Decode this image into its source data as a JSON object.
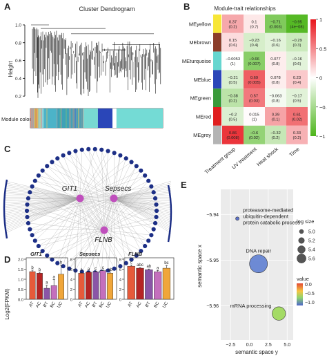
{
  "panels": {
    "A": "A",
    "B": "B",
    "C": "C",
    "D": "D",
    "E": "E"
  },
  "colors": {
    "dend_line": "#000000",
    "bar_turquoise": "#6fd6d0",
    "bar_blue": "#2a46b8",
    "heat_pos": "#e8141b",
    "heat_neg": "#4cb51a",
    "network_node": "#1d2f86",
    "hub_node": "#c04fbd",
    "bar_colors": [
      "#e65a3a",
      "#b52424",
      "#8a55a6",
      "#c46fbd",
      "#f0a63a"
    ],
    "bubble_dna": "#5f7fd2",
    "bubble_mrna": "#9cd957",
    "bubble_legend": "#4e66ca"
  },
  "chart_data": [
    {
      "type": "dendrogram",
      "panel": "A",
      "title": "Cluster Dendrogram",
      "ylabel": "Height",
      "yticks": [
        0.2,
        0.4,
        0.6,
        0.8,
        1.0
      ],
      "ylim": [
        0.1,
        1.0
      ],
      "colorbar_label": "Module colors",
      "module_colors": [
        {
          "color": "#a6a6a6",
          "fraction": 0.03
        },
        {
          "color": "#d4a34a",
          "fraction": 0.03
        },
        {
          "color": "#8fd1d7",
          "fraction": 0.04
        },
        {
          "color": "#4cb3c8",
          "fraction": 0.1
        },
        {
          "color": "#3da1b7",
          "fraction": 0.2
        },
        {
          "color": "#78d9d2",
          "fraction": 0.11
        },
        {
          "color": "#2a46b8",
          "fraction": 0.11
        },
        {
          "color": "#ffffff",
          "fraction": 0.03
        },
        {
          "color": "#74dbd5",
          "fraction": 0.35
        }
      ]
    },
    {
      "type": "heatmap",
      "panel": "B",
      "title": "Module-trait relationships",
      "rows": [
        "MEyellow",
        "MEbrown",
        "MEturquoise",
        "MEblue",
        "MEgreen",
        "MEred",
        "MEgrey"
      ],
      "row_colors": [
        "#f7e637",
        "#8b3d2a",
        "#66d6cf",
        "#2a46b8",
        "#3a9a3a",
        "#e01f1f",
        "#b4b4b4"
      ],
      "columns": [
        "Treatment group",
        "UV treatment",
        "Heat shock",
        "Time"
      ],
      "values": [
        [
          0.37,
          0.1,
          -0.71,
          -0.95
        ],
        [
          0.15,
          -0.23,
          -0.16,
          -0.29
        ],
        [
          -0.0053,
          -0.66,
          0.077,
          -0.16
        ],
        [
          -0.21,
          0.69,
          0.078,
          0.23
        ],
        [
          -0.38,
          0.57,
          -0.063,
          -0.17
        ],
        [
          -0.2,
          0.015,
          0.39,
          0.61
        ],
        [
          0.86,
          -0.6,
          -0.32,
          0.33
        ]
      ],
      "cell_text": [
        [
          [
            "0.37",
            "(0.2)"
          ],
          [
            "0.1",
            "(0.7)"
          ],
          [
            "−0.71",
            "(0.003)"
          ],
          [
            "−0.95",
            "(4e−08)"
          ]
        ],
        [
          [
            "0.15",
            "(0.6)"
          ],
          [
            "−0.23",
            "(0.4)"
          ],
          [
            "−0.16",
            "(0.6)"
          ],
          [
            "−0.29",
            "(0.3)"
          ]
        ],
        [
          [
            "−0.0053",
            "(1)"
          ],
          [
            "−0.66",
            "(0.007)"
          ],
          [
            "0.077",
            "(0.8)"
          ],
          [
            "−0.16",
            "(0.6)"
          ]
        ],
        [
          [
            "−0.21",
            "(0.5)"
          ],
          [
            "0.69",
            "(0.005)"
          ],
          [
            "0.078",
            "(0.8)"
          ],
          [
            "0.23",
            "(0.4)"
          ]
        ],
        [
          [
            "−0.38",
            "(0.2)"
          ],
          [
            "0.57",
            "(0.03)"
          ],
          [
            "−0.063",
            "(0.8)"
          ],
          [
            "−0.17",
            "(0.5)"
          ]
        ],
        [
          [
            "−0.2",
            "(0.5)"
          ],
          [
            "0.015",
            "(1)"
          ],
          [
            "0.39",
            "(0.1)"
          ],
          [
            "0.61",
            "(0.02)"
          ]
        ],
        [
          [
            "0.86",
            "(0.008)"
          ],
          [
            "−0.6",
            "(0.02)"
          ],
          [
            "−0.32",
            "(0.2)"
          ],
          [
            "0.33",
            "(0.2)"
          ]
        ]
      ],
      "colorbar_ticks": [
        "1",
        "0.5",
        "0",
        "−0.5",
        "−1"
      ],
      "colorbar_range": [
        -1,
        1
      ]
    },
    {
      "type": "network",
      "panel": "C",
      "hubs": [
        "GIT1",
        "Sepsecs",
        "FLNB"
      ],
      "peripheral_node_count": 62
    },
    {
      "type": "bar",
      "panel": "D",
      "ylabel": "Log2(FPKM)",
      "categories": [
        "AT",
        "AC",
        "BT",
        "BC",
        "UC"
      ],
      "subplots": [
        {
          "title": "GIT1",
          "ylim": [
            0,
            2
          ],
          "yticks": [
            0.0,
            0.5,
            1.0,
            1.5,
            2.0
          ],
          "values": [
            1.38,
            1.3,
            0.55,
            0.68,
            1.25
          ],
          "errors": [
            0.07,
            0.05,
            0.15,
            0.3,
            0.45
          ],
          "letters": [
            "b",
            "b",
            "a",
            "a",
            "b"
          ]
        },
        {
          "title": "Sepsecs",
          "ylim": [
            0,
            8
          ],
          "yticks": [
            0,
            2,
            4,
            6,
            8
          ],
          "values": [
            5.2,
            5.4,
            5.5,
            5.7,
            5.2
          ],
          "errors": [
            0.15,
            0.12,
            0.1,
            0.12,
            0.2
          ],
          "letters": [
            "a",
            "a",
            "c",
            "c",
            "ab"
          ]
        },
        {
          "title": "FLNB",
          "ylim": [
            0,
            8
          ],
          "yticks": [
            0,
            2,
            4,
            6,
            8
          ],
          "values": [
            6.6,
            6.2,
            5.9,
            5.5,
            6.2
          ],
          "errors": [
            0.25,
            0.12,
            0.15,
            0.25,
            0.55
          ],
          "letters": [
            "c",
            "abc",
            "ab",
            "a",
            "bc"
          ]
        }
      ]
    },
    {
      "type": "scatter",
      "panel": "E",
      "xlabel": "semantic space y",
      "ylabel": "semantic space x",
      "xticks": [
        -2.5,
        0.0,
        2.5,
        5.0
      ],
      "xtick_labels": [
        "−2.5",
        "0.0",
        "2.5",
        "5.0"
      ],
      "yticks": [
        -5.94,
        -5.95,
        -5.96
      ],
      "ytick_labels": [
        "−5.94",
        "−5.95",
        "−5.96"
      ],
      "xlim": [
        -3.8,
        5.8
      ],
      "ylim": [
        -5.9675,
        -5.9345
      ],
      "points": [
        {
          "label": "proteasome-mediated ubiquitin-dependent protein catabolic process",
          "label_lines": [
            "proteasome-mediated",
            "ubiquitin-dependent",
            "protein catabolic process"
          ],
          "x": -1.6,
          "y": -5.9409,
          "log_size": 3.5,
          "value": -1.0,
          "color": "#4e66ca"
        },
        {
          "label": "DNA repair",
          "label_lines": [
            "DNA repair"
          ],
          "x": 1.2,
          "y": -5.9508,
          "log_size": 5.6,
          "value": -0.7,
          "color": "#5f7fd2"
        },
        {
          "label": "mRNA processing",
          "label_lines": [
            "mRNA processing"
          ],
          "x": 3.9,
          "y": -5.9617,
          "log_size": 5.0,
          "value": 0.0,
          "color": "#9cd957"
        }
      ],
      "legend_size_title": "log size",
      "legend_size_values": [
        "5.0",
        "5.2",
        "5.4",
        "5.6"
      ],
      "legend_color_title": "value",
      "legend_color_values": [
        "0.0",
        "−0.5",
        "−1.0"
      ]
    }
  ]
}
